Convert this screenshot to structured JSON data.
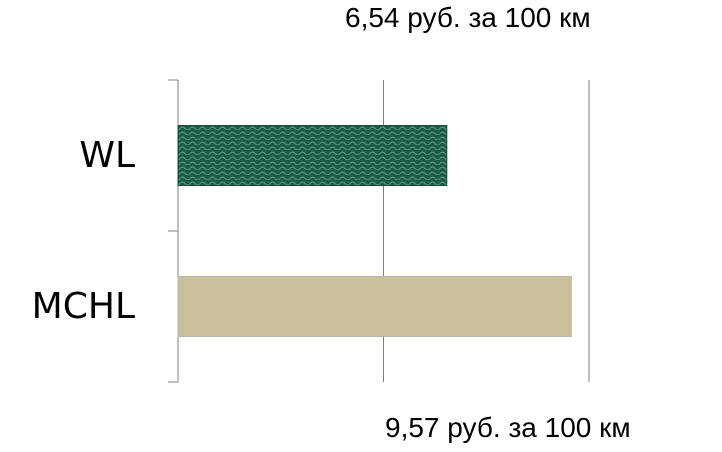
{
  "chart_data": {
    "type": "bar",
    "orientation": "horizontal",
    "categories": [
      "WL",
      "MCHL"
    ],
    "values": [
      6.54,
      9.57
    ],
    "xlim": [
      0,
      10
    ],
    "grid": true,
    "annotations": [
      "6,54 руб. за 100 км",
      "9,57 руб. за 100 км"
    ],
    "colors": {
      "WL": "#1f5a4a",
      "MCHL": "#c9bf9a"
    }
  }
}
